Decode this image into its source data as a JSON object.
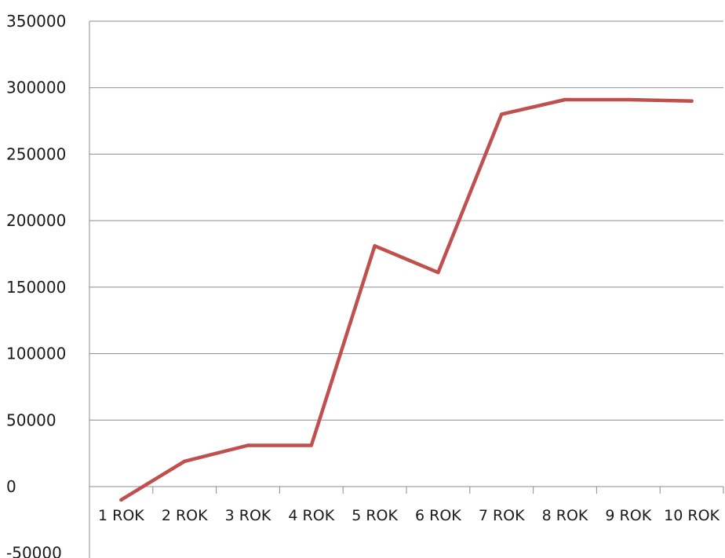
{
  "chart_data": {
    "type": "line",
    "title": "",
    "xlabel": "",
    "ylabel": "",
    "categories": [
      "1 ROK",
      "2 ROK",
      "3 ROK",
      "4 ROK",
      "5 ROK",
      "6 ROK",
      "7 ROK",
      "8 ROK",
      "9 ROK",
      "10 ROK"
    ],
    "series": [
      {
        "values": [
          -10000,
          19000,
          31000,
          31000,
          181000,
          161000,
          280000,
          291000,
          291000,
          290000
        ]
      }
    ],
    "ylim": [
      -50000,
      350000
    ],
    "yticks": [
      -50000,
      0,
      50000,
      100000,
      150000,
      200000,
      250000,
      300000,
      350000
    ],
    "ytick_labels": [
      "-50000",
      "0",
      "50000",
      "100000",
      "150000",
      "200000",
      "250000",
      "300000",
      "350000"
    ],
    "grid": true,
    "legend": "none",
    "line_color": "#c0504d"
  }
}
